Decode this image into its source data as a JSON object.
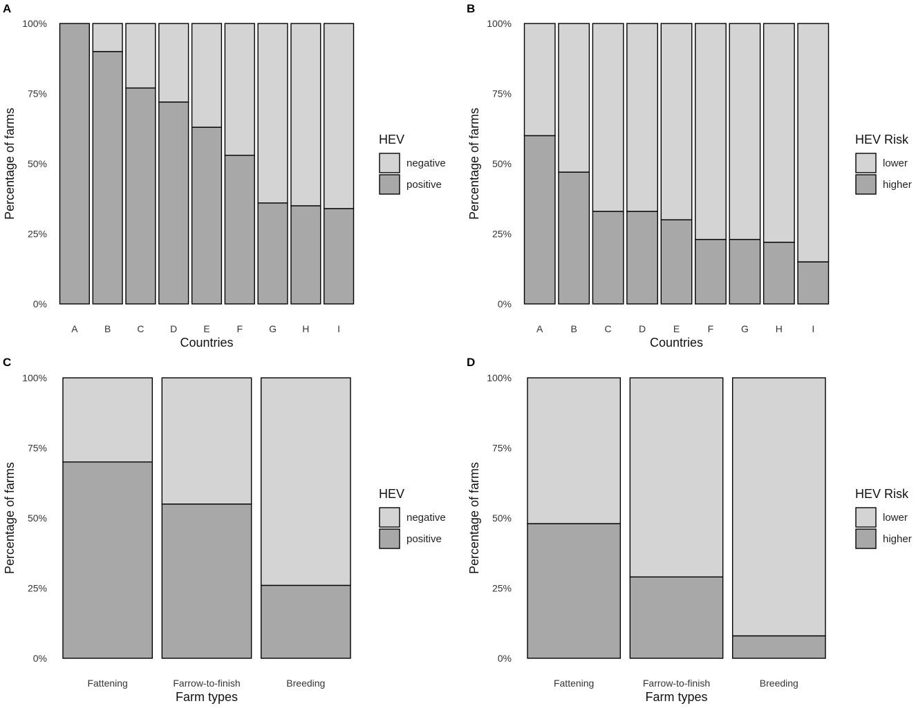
{
  "chart_data": [
    {
      "panel": "A",
      "type": "bar",
      "stacked": true,
      "percent_stacked": true,
      "xlabel": "Countries",
      "ylabel": "Percentage of farms",
      "ylim": [
        0,
        100
      ],
      "yticks": [
        "0%",
        "25%",
        "50%",
        "75%",
        "100%"
      ],
      "categories": [
        "A",
        "B",
        "C",
        "D",
        "E",
        "F",
        "G",
        "H",
        "I"
      ],
      "legend_title": "HEV",
      "legend_position": "right",
      "series": [
        {
          "name": "negative",
          "color": "#d4d4d4",
          "values": [
            0,
            10,
            23,
            28,
            37,
            47,
            64,
            65,
            66
          ]
        },
        {
          "name": "positive",
          "color": "#a8a8a8",
          "values": [
            100,
            90,
            77,
            72,
            63,
            53,
            36,
            35,
            34
          ]
        }
      ]
    },
    {
      "panel": "B",
      "type": "bar",
      "stacked": true,
      "percent_stacked": true,
      "xlabel": "Countries",
      "ylabel": "Percentage of farms",
      "ylim": [
        0,
        100
      ],
      "yticks": [
        "0%",
        "25%",
        "50%",
        "75%",
        "100%"
      ],
      "categories": [
        "A",
        "B",
        "C",
        "D",
        "E",
        "F",
        "G",
        "H",
        "I"
      ],
      "legend_title": "HEV Risk",
      "legend_position": "right",
      "series": [
        {
          "name": "lower",
          "color": "#d4d4d4",
          "values": [
            40,
            53,
            67,
            67,
            70,
            77,
            77,
            78,
            85
          ]
        },
        {
          "name": "higher",
          "color": "#a8a8a8",
          "values": [
            60,
            47,
            33,
            33,
            30,
            23,
            23,
            22,
            15
          ]
        }
      ]
    },
    {
      "panel": "C",
      "type": "bar",
      "stacked": true,
      "percent_stacked": true,
      "xlabel": "Farm types",
      "ylabel": "Percentage of farms",
      "ylim": [
        0,
        100
      ],
      "yticks": [
        "0%",
        "25%",
        "50%",
        "75%",
        "100%"
      ],
      "categories": [
        "Fattening",
        "Farrow-to-finish",
        "Breeding"
      ],
      "legend_title": "HEV",
      "legend_position": "right",
      "series": [
        {
          "name": "negative",
          "color": "#d4d4d4",
          "values": [
            30,
            45,
            74
          ]
        },
        {
          "name": "positive",
          "color": "#a8a8a8",
          "values": [
            70,
            55,
            26
          ]
        }
      ]
    },
    {
      "panel": "D",
      "type": "bar",
      "stacked": true,
      "percent_stacked": true,
      "xlabel": "Farm types",
      "ylabel": "Percentage of farms",
      "ylim": [
        0,
        100
      ],
      "yticks": [
        "0%",
        "25%",
        "50%",
        "75%",
        "100%"
      ],
      "categories": [
        "Fattening",
        "Farrow-to-finish",
        "Breeding"
      ],
      "legend_title": "HEV Risk",
      "legend_position": "right",
      "series": [
        {
          "name": "lower",
          "color": "#d4d4d4",
          "values": [
            52,
            71,
            92
          ]
        },
        {
          "name": "higher",
          "color": "#a8a8a8",
          "values": [
            48,
            29,
            8
          ]
        }
      ]
    }
  ]
}
